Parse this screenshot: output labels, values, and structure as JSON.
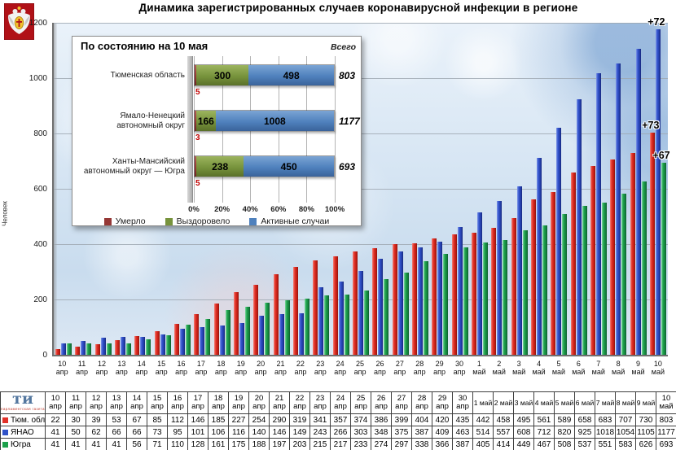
{
  "title": "Динамика зарегистрированных случаев коронавирусной инфекции  в регионе",
  "y_axis_label": "Человек",
  "chart_data": {
    "type": "bar",
    "title": "Динамика зарегистрированных случаев коронавирусной инфекции в регионе",
    "ylabel": "Человек",
    "xlabel": "",
    "ylim": [
      0,
      1200
    ],
    "y_ticks": [
      0,
      200,
      400,
      600,
      800,
      1000,
      1200
    ],
    "grid": "horizontal",
    "legend_position": "table-below",
    "categories": [
      {
        "day": "10",
        "month": "апр"
      },
      {
        "day": "11",
        "month": "апр"
      },
      {
        "day": "12",
        "month": "апр"
      },
      {
        "day": "13",
        "month": "апр"
      },
      {
        "day": "14",
        "month": "апр"
      },
      {
        "day": "15",
        "month": "апр"
      },
      {
        "day": "16",
        "month": "апр"
      },
      {
        "day": "17",
        "month": "апр"
      },
      {
        "day": "18",
        "month": "апр"
      },
      {
        "day": "19",
        "month": "апр"
      },
      {
        "day": "20",
        "month": "апр"
      },
      {
        "day": "21",
        "month": "апр"
      },
      {
        "day": "22",
        "month": "апр"
      },
      {
        "day": "23",
        "month": "апр"
      },
      {
        "day": "24",
        "month": "апр"
      },
      {
        "day": "25",
        "month": "апр"
      },
      {
        "day": "26",
        "month": "апр"
      },
      {
        "day": "27",
        "month": "апр"
      },
      {
        "day": "28",
        "month": "апр"
      },
      {
        "day": "29",
        "month": "апр"
      },
      {
        "day": "30",
        "month": "апр"
      },
      {
        "day": "1",
        "month": "май"
      },
      {
        "day": "2",
        "month": "май"
      },
      {
        "day": "3",
        "month": "май"
      },
      {
        "day": "4",
        "month": "май"
      },
      {
        "day": "5",
        "month": "май"
      },
      {
        "day": "6",
        "month": "май"
      },
      {
        "day": "7",
        "month": "май"
      },
      {
        "day": "8",
        "month": "май"
      },
      {
        "day": "9",
        "month": "май"
      },
      {
        "day": "10",
        "month": "май"
      }
    ],
    "series": [
      {
        "name": "Тюм. обл.",
        "color": "#e0312a",
        "values": [
          22,
          30,
          39,
          53,
          67,
          85,
          112,
          146,
          185,
          227,
          254,
          290,
          319,
          341,
          357,
          374,
          386,
          399,
          404,
          420,
          435,
          442,
          458,
          495,
          561,
          589,
          658,
          683,
          707,
          730,
          803
        ]
      },
      {
        "name": "ЯНАО",
        "color": "#2f52c8",
        "values": [
          41,
          50,
          62,
          66,
          66,
          73,
          95,
          101,
          106,
          116,
          140,
          146,
          149,
          243,
          266,
          303,
          348,
          375,
          387,
          409,
          463,
          514,
          557,
          608,
          712,
          820,
          925,
          1018,
          1054,
          1105,
          1177
        ]
      },
      {
        "name": "Югра",
        "color": "#1ca04b",
        "values": [
          41,
          41,
          41,
          41,
          56,
          71,
          110,
          128,
          161,
          175,
          188,
          197,
          203,
          215,
          217,
          233,
          274,
          297,
          338,
          366,
          387,
          405,
          414,
          449,
          467,
          508,
          537,
          551,
          583,
          626,
          693
        ]
      }
    ],
    "annotations": [
      {
        "text": "+73",
        "series_index": 0,
        "category_index": 30,
        "value": 803
      },
      {
        "text": "+72",
        "series_index": 1,
        "category_index": 30,
        "value": 1177
      },
      {
        "text": "+67",
        "series_index": 2,
        "category_index": 30,
        "value": 693
      }
    ]
  },
  "inset": {
    "title": "По состоянию на 10 мая",
    "total_label": "Всего",
    "x_ticks": [
      "0%",
      "20%",
      "40%",
      "60%",
      "80%",
      "100%"
    ],
    "rows": [
      {
        "region_lines": [
          "Тюменская область"
        ],
        "died": 5,
        "recovered": 300,
        "active": 498,
        "total": 803
      },
      {
        "region_lines": [
          "Ямало-Ненецкий",
          "автономный округ"
        ],
        "died": 3,
        "recovered": 166,
        "active": 1008,
        "total": 1177
      },
      {
        "region_lines": [
          "Ханты-Мансийский",
          "автономный округ — Югра"
        ],
        "died": 5,
        "recovered": 238,
        "active": 450,
        "total": 693
      }
    ],
    "legend": [
      {
        "label": "Умерло",
        "color": "#953735"
      },
      {
        "label": "Выздоровело",
        "color": "#77933c"
      },
      {
        "label": "Активные случаи",
        "color": "#4f81bd"
      }
    ]
  },
  "newspaper_logo": {
    "text": "ти",
    "caption": "парламентская газета"
  }
}
